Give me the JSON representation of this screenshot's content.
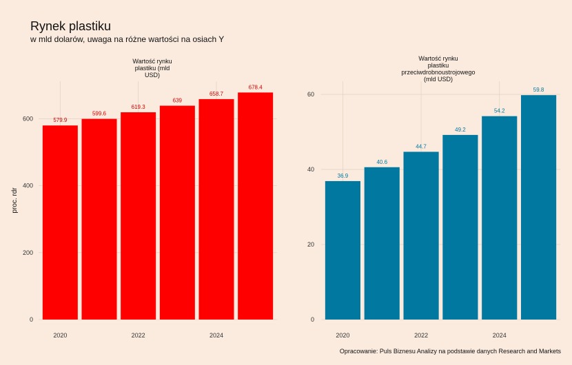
{
  "header": {
    "title": "Rynek plastiku",
    "subtitle": "w mld dolarów, uwaga na różne wartości na osiach Y"
  },
  "caption": "Opracowanie: Puls Biznesu Analizy na podstawie danych Research and Markets",
  "chart_data": [
    {
      "type": "bar",
      "title_lines": [
        "Wartość rynku",
        "plastiku (mld",
        "USD)"
      ],
      "x": [
        2020,
        2021,
        2022,
        2023,
        2024,
        2025
      ],
      "values": [
        579.9,
        599.6,
        619.3,
        639,
        658.7,
        678.4
      ],
      "value_labels": [
        "579.9",
        "599.6",
        "619.3",
        "639",
        "658.7",
        "678.4"
      ],
      "x_ticks": [
        "2020",
        "2022",
        "2024"
      ],
      "x_tick_values": [
        2020,
        2022,
        2024
      ],
      "y_ticks": [
        "0",
        "200",
        "400",
        "600"
      ],
      "y_tick_values": [
        0,
        200,
        400,
        600
      ],
      "ylabel": "proc. rdr",
      "ylim": [
        0,
        712
      ],
      "color": "#ff0000",
      "label_color": "#d40000",
      "grid": true
    },
    {
      "type": "bar",
      "title_lines": [
        "Wartość rynku",
        "plastiku",
        "przeciwdrobnoustrojowego",
        "(mld USD)"
      ],
      "x": [
        2020,
        2021,
        2022,
        2023,
        2024,
        2025
      ],
      "values": [
        36.9,
        40.6,
        44.7,
        49.2,
        54.2,
        59.8
      ],
      "value_labels": [
        "36.9",
        "40.6",
        "44.7",
        "49.2",
        "54.2",
        "59.8"
      ],
      "x_ticks": [
        "2020",
        "2022",
        "2024"
      ],
      "x_tick_values": [
        2020,
        2022,
        2024
      ],
      "y_ticks": [
        "0",
        "20",
        "40",
        "60"
      ],
      "y_tick_values": [
        0,
        20,
        40,
        60
      ],
      "ylabel": "",
      "ylim": [
        0,
        63.5
      ],
      "color": "#0078a0",
      "label_color": "#0078a0",
      "grid": true
    }
  ]
}
